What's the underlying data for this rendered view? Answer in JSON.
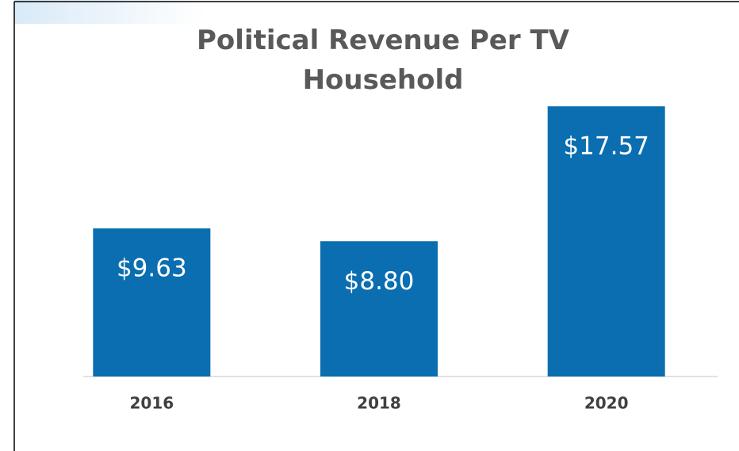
{
  "chart_data": {
    "type": "bar",
    "title": "Political Revenue Per TV Household",
    "categories": [
      "2016",
      "2018",
      "2020"
    ],
    "values": [
      9.63,
      8.8,
      17.57
    ],
    "value_labels": [
      "$9.63",
      "$8.80",
      "$17.57"
    ],
    "color": "#0a6eb0",
    "ylim": [
      0,
      18.3
    ]
  }
}
